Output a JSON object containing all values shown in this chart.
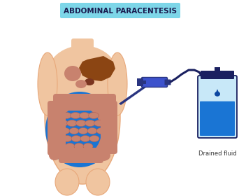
{
  "title": "ABDOMINAL PARACENTESIS",
  "title_bg": "#7dd6e8",
  "title_fontsize": 7.5,
  "label_drained": "Drained fluid",
  "body_color": "#f0c5a0",
  "body_outline": "#e8a87a",
  "fluid_blue": "#1a75d4",
  "fluid_light": "#90caf9",
  "intestine_color": "#c8826e",
  "intestine_light": "#d4a090",
  "organ_dark": "#a05840",
  "liver_color": "#8b4513",
  "needle_dark": "#2a3580",
  "needle_mid": "#3d52cc",
  "needle_light": "#6680ee",
  "tube_color": "#1a2060",
  "bag_outline": "#1a2060",
  "bag_top_color": "#1a2060",
  "bag_light": "#c8e8f8",
  "bag_blue": "#1a75d4",
  "drop_color": "#0d47a1",
  "bg_color": "#ffffff"
}
